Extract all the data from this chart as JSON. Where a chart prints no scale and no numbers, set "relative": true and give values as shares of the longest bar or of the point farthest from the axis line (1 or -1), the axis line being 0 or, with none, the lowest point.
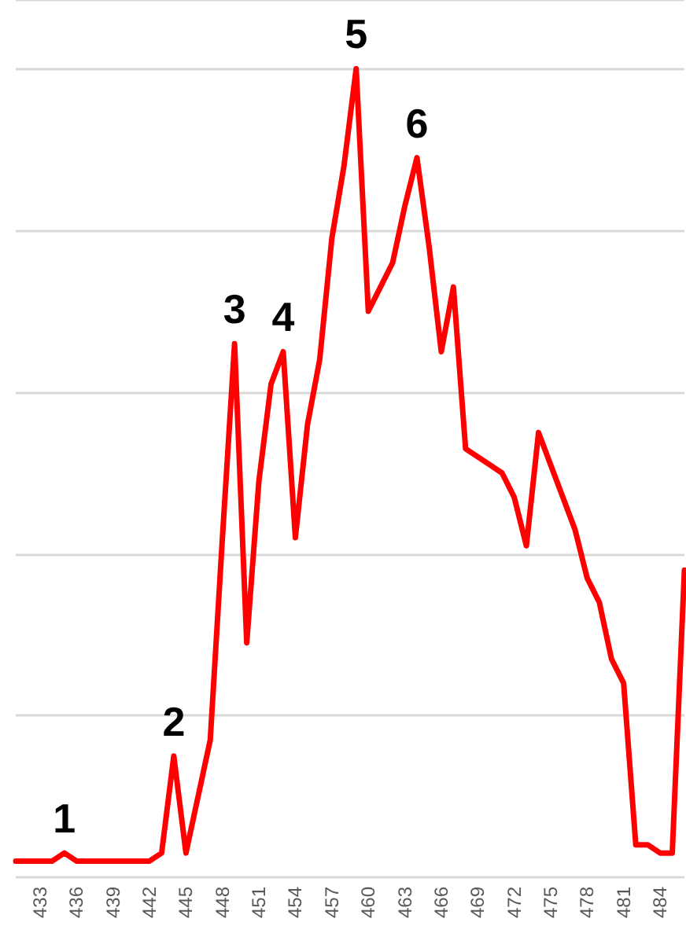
{
  "chart_data": {
    "type": "line",
    "relative": true,
    "x": [
      431,
      432,
      433,
      434,
      435,
      436,
      437,
      438,
      439,
      440,
      441,
      442,
      443,
      444,
      445,
      446,
      447,
      448,
      449,
      450,
      451,
      452,
      453,
      454,
      455,
      456,
      457,
      458,
      459,
      460,
      461,
      462,
      463,
      464,
      465,
      466,
      467,
      468,
      469,
      470,
      471,
      472,
      473,
      474,
      475,
      476,
      477,
      478,
      479,
      480,
      481,
      482,
      483,
      484,
      485,
      486
    ],
    "series": [
      {
        "color": "#ff0000",
        "values": [
          0.02,
          0.02,
          0.02,
          0.02,
          0.03,
          0.02,
          0.02,
          0.02,
          0.02,
          0.02,
          0.02,
          0.02,
          0.03,
          0.15,
          0.03,
          0.1,
          0.17,
          0.42,
          0.66,
          0.29,
          0.49,
          0.61,
          0.65,
          0.42,
          0.56,
          0.64,
          0.79,
          0.88,
          1,
          0.7,
          0.73,
          0.76,
          0.83,
          0.89,
          0.78,
          0.65,
          0.73,
          0.53,
          0.52,
          0.51,
          0.5,
          0.47,
          0.41,
          0.55,
          0.51,
          0.47,
          0.43,
          0.37,
          0.34,
          0.27,
          0.24,
          0.04,
          0.04,
          0.03,
          0.03,
          0.38
        ]
      }
    ],
    "xlim": [
      431,
      486
    ],
    "xticks": [
      433,
      436,
      439,
      442,
      445,
      448,
      451,
      454,
      457,
      460,
      463,
      466,
      469,
      472,
      475,
      478,
      481,
      484
    ],
    "grid": "y",
    "marker": "none",
    "line_style": "solid",
    "annotations": [
      {
        "text": "1",
        "x": 435,
        "y": 0.03
      },
      {
        "text": "2",
        "x": 444,
        "y": 0.15
      },
      {
        "text": "3",
        "x": 449,
        "y": 0.66
      },
      {
        "text": "4",
        "x": 453,
        "y": 0.65
      },
      {
        "text": "5",
        "x": 459,
        "y": 1
      },
      {
        "text": "6",
        "x": 464,
        "y": 0.89
      }
    ]
  }
}
